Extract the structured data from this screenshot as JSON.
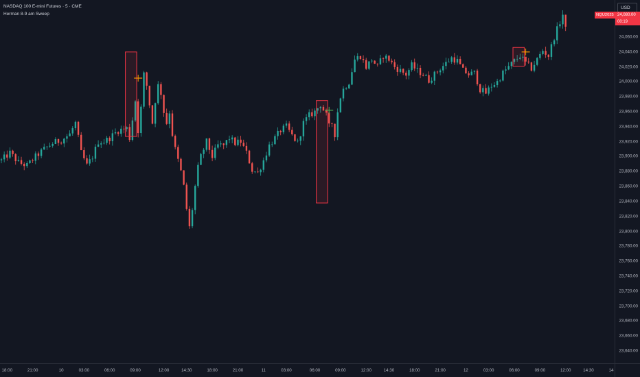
{
  "legend": {
    "title": "NASDAQ 100 E-mini Futures · 5 · CME",
    "indicator": "Herman 8-9 am Sweep"
  },
  "currency_button": "USD",
  "last_price": {
    "symbol": "NQU2025",
    "price": "24,080.00",
    "countdown": "00:19"
  },
  "colors": {
    "background": "#131722",
    "up": "#26a69a",
    "down": "#ef5350",
    "sweep_box": "#f23645",
    "sweep_mark_orange": "#ff9800",
    "sweep_mark_green": "#4caf50"
  },
  "price_axis": {
    "labels": [
      "24,060.00",
      "24,040.00",
      "24,020.00",
      "24,000.00",
      "23,980.00",
      "23,960.00",
      "23,940.00",
      "23,920.00",
      "23,900.00",
      "23,880.00",
      "23,860.00",
      "23,840.00",
      "23,820.00",
      "23,800.00",
      "23,780.00",
      "23,760.00",
      "23,740.00",
      "23,720.00",
      "23,700.00",
      "23,680.00",
      "23,660.00",
      "23,640.00"
    ]
  },
  "time_axis": {
    "labels": [
      "18:00",
      "21:00",
      "10",
      "03:00",
      "06:00",
      "09:00",
      "12:00",
      "14:30",
      "18:00",
      "21:00",
      "11",
      "03:00",
      "06:00",
      "09:00",
      "12:00",
      "14:30",
      "18:00",
      "21:00",
      "12",
      "03:00",
      "06:00",
      "09:00",
      "12:00",
      "14:30",
      "14"
    ]
  },
  "chart_data": {
    "type": "candlestick",
    "symbol": "NQU2025",
    "interval": "5",
    "exchange": "CME",
    "ylim": [
      23630,
      24100
    ],
    "x_ticks": [
      "18:00",
      "21:00",
      "10",
      "03:00",
      "06:00",
      "09:00",
      "12:00",
      "14:30",
      "18:00",
      "21:00",
      "11",
      "03:00",
      "06:00",
      "09:00",
      "12:00",
      "14:30",
      "18:00",
      "21:00",
      "12",
      "03:00",
      "06:00",
      "09:00",
      "12:00",
      "14:30",
      "14"
    ],
    "price_path": [
      [
        0,
        23895
      ],
      [
        3,
        23905
      ],
      [
        6,
        23892
      ],
      [
        9,
        23888
      ],
      [
        12,
        23900
      ],
      [
        15,
        23910
      ],
      [
        18,
        23918
      ],
      [
        21,
        23922
      ],
      [
        24,
        23930
      ],
      [
        26,
        23945
      ],
      [
        27,
        23925
      ],
      [
        28,
        23905
      ],
      [
        30,
        23888
      ],
      [
        32,
        23900
      ],
      [
        34,
        23920
      ],
      [
        36,
        23920
      ],
      [
        38,
        23925
      ],
      [
        41,
        23935
      ],
      [
        44,
        23938
      ],
      [
        45,
        23925
      ],
      [
        46,
        23950
      ],
      [
        47,
        23975
      ],
      [
        48,
        23935
      ],
      [
        49,
        23965
      ],
      [
        50,
        24010
      ],
      [
        51,
        23995
      ],
      [
        52,
        23970
      ],
      [
        53,
        23945
      ],
      [
        54,
        23975
      ],
      [
        55,
        23995
      ],
      [
        56,
        23985
      ],
      [
        57,
        23960
      ],
      [
        58,
        23945
      ],
      [
        59,
        23960
      ],
      [
        60,
        23930
      ],
      [
        61,
        23910
      ],
      [
        62,
        23895
      ],
      [
        63,
        23880
      ],
      [
        64,
        23860
      ],
      [
        65,
        23830
      ],
      [
        66,
        23805
      ],
      [
        67,
        23830
      ],
      [
        68,
        23860
      ],
      [
        69,
        23885
      ],
      [
        70,
        23900
      ],
      [
        72,
        23920
      ],
      [
        74,
        23900
      ],
      [
        76,
        23915
      ],
      [
        78,
        23915
      ],
      [
        80,
        23925
      ],
      [
        82,
        23918
      ],
      [
        84,
        23920
      ],
      [
        86,
        23905
      ],
      [
        88,
        23882
      ],
      [
        90,
        23878
      ],
      [
        92,
        23895
      ],
      [
        94,
        23915
      ],
      [
        96,
        23925
      ],
      [
        98,
        23935
      ],
      [
        100,
        23940
      ],
      [
        102,
        23928
      ],
      [
        104,
        23918
      ],
      [
        106,
        23945
      ],
      [
        108,
        23955
      ],
      [
        110,
        23960
      ],
      [
        112,
        23970
      ],
      [
        114,
        23955
      ],
      [
        115,
        23940
      ],
      [
        116,
        23945
      ],
      [
        117,
        23930
      ],
      [
        118,
        23960
      ],
      [
        119,
        23980
      ],
      [
        120,
        23990
      ],
      [
        122,
        24000
      ],
      [
        124,
        24030
      ],
      [
        126,
        24035
      ],
      [
        128,
        24020
      ],
      [
        130,
        24030
      ],
      [
        132,
        24020
      ],
      [
        134,
        24035
      ],
      [
        136,
        24030
      ],
      [
        138,
        24020
      ],
      [
        140,
        24015
      ],
      [
        142,
        24010
      ],
      [
        144,
        24022
      ],
      [
        146,
        24015
      ],
      [
        148,
        24010
      ],
      [
        150,
        24002
      ],
      [
        152,
        24010
      ],
      [
        154,
        24018
      ],
      [
        156,
        24025
      ],
      [
        158,
        24032
      ],
      [
        160,
        24028
      ],
      [
        162,
        24015
      ],
      [
        164,
        24010
      ],
      [
        166,
        24012
      ],
      [
        168,
        23990
      ],
      [
        170,
        23985
      ],
      [
        172,
        23995
      ],
      [
        174,
        24000
      ],
      [
        176,
        24012
      ],
      [
        178,
        24020
      ],
      [
        180,
        24028
      ],
      [
        182,
        24035
      ],
      [
        184,
        24025
      ],
      [
        186,
        24018
      ],
      [
        188,
        24030
      ],
      [
        190,
        24042
      ],
      [
        192,
        24035
      ],
      [
        194,
        24060
      ],
      [
        196,
        24080
      ],
      [
        197,
        24090
      ],
      [
        198,
        24070
      ]
    ],
    "total_bars": 198,
    "sweep_boxes": [
      {
        "start_bar": 44,
        "end_bar": 47,
        "high": 24040,
        "low": 23927
      },
      {
        "start_bar": 111,
        "end_bar": 114,
        "high": 23975,
        "low": 23838
      },
      {
        "start_bar": 180,
        "end_bar": 183,
        "high": 24046,
        "low": 24021
      }
    ],
    "sweep_marks": [
      {
        "bar": 48,
        "price": 24005,
        "color": "orange"
      },
      {
        "bar": 115,
        "price": 23962,
        "color": "green"
      },
      {
        "bar": 184,
        "price": 24040,
        "color": "orange"
      }
    ]
  }
}
